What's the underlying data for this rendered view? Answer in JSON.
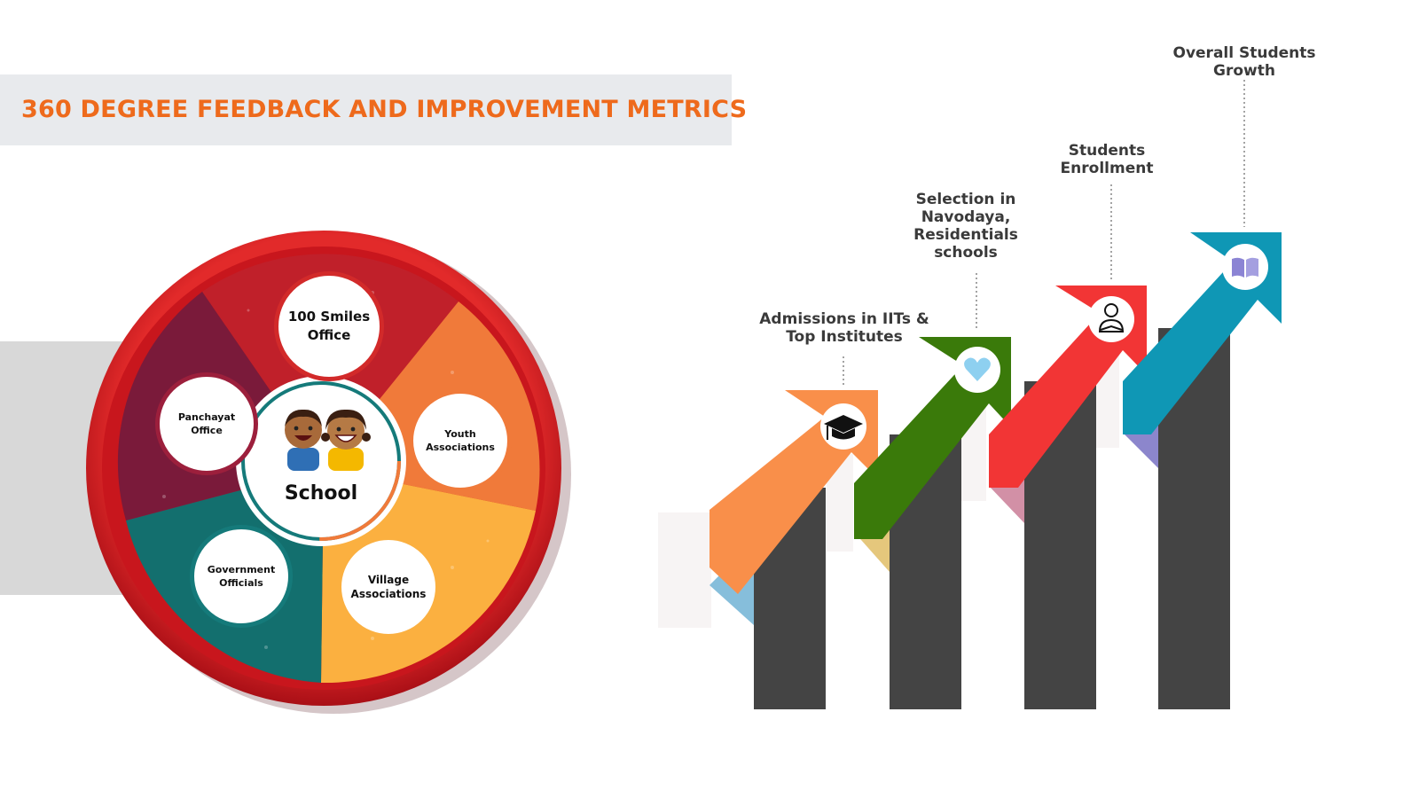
{
  "header": {
    "title": "360 DEGREE FEEDBACK AND IMPROVEMENT METRICS"
  },
  "stakeholder_wheel": {
    "center": {
      "label": "School",
      "icon": "two-children-icon"
    },
    "nodes": [
      {
        "id": "smiles",
        "label": "100 Smiles\nOffice"
      },
      {
        "id": "panchayat",
        "label": "Panchayat\nOffice"
      },
      {
        "id": "youth",
        "label": "Youth\nAssociations"
      },
      {
        "id": "government",
        "label": "Government\nOfficials"
      },
      {
        "id": "village",
        "label": "Village\nAssociations"
      }
    ],
    "colors": {
      "rim": "#c8161d",
      "segment_red": "#c0202a",
      "segment_orange": "#f07a3a",
      "segment_yellow": "#fbb040",
      "segment_teal": "#136f6e",
      "segment_maroon": "#7a1a3a"
    }
  },
  "metrics": [
    {
      "label": "Admissions in IITs &\nTop Institutes",
      "icon": "graduation-cap-icon",
      "color": "#f98f4a"
    },
    {
      "label": "Selection in\nNavodaya,\nResidentials\nschools",
      "icon": "heart-icon",
      "color": "#3a7a0a"
    },
    {
      "label": "Students\nEnrollment",
      "icon": "student-reading-icon",
      "color": "#f23535"
    },
    {
      "label": "Overall Students\nGrowth",
      "icon": "book-icon",
      "color": "#0f97b5"
    }
  ]
}
